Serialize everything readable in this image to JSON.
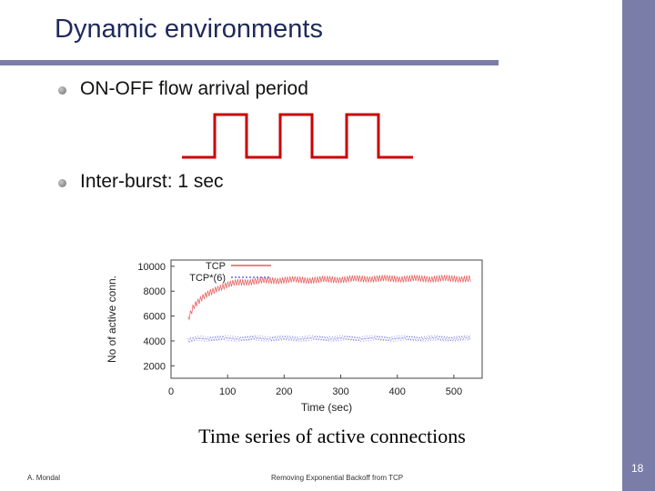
{
  "slide": {
    "title": "Dynamic environments",
    "bullets": [
      {
        "text": "ON-OFF flow arrival period"
      },
      {
        "text": "Inter-burst: 1 sec"
      }
    ],
    "caption": "Time series of active connections",
    "footer_left": "A. Mondal",
    "footer_center": "Removing Exponential Backoff from TCP",
    "page_number": "18"
  },
  "colors": {
    "accent": "#7b7da9",
    "title": "#1f2a5c",
    "wave": "#cc0000",
    "tcp_series": "#e23b3b",
    "tcp6_series": "#4a4ad0"
  },
  "chart_data": {
    "type": "line",
    "xlabel": "Time (sec)",
    "ylabel": "No of active conn.",
    "xlim": [
      0,
      550
    ],
    "ylim": [
      1000,
      10500
    ],
    "x_ticks": [
      0,
      100,
      200,
      300,
      400,
      500
    ],
    "y_ticks": [
      2000,
      4000,
      6000,
      8000,
      10000
    ],
    "legend_position": "top-left",
    "series": [
      {
        "name": "TCP",
        "color": "#e23b3b",
        "x": [
          30,
          40,
          50,
          60,
          70,
          80,
          100,
          120,
          150,
          200,
          250,
          300,
          350,
          400,
          450,
          500,
          530
        ],
        "y": [
          5800,
          6800,
          7200,
          7600,
          7900,
          8200,
          8500,
          8700,
          8800,
          8900,
          8900,
          8950,
          9000,
          9000,
          9000,
          9000,
          9000
        ],
        "band": 600
      },
      {
        "name": "TCP*(6)",
        "color": "#4a4ad0",
        "x": [
          30,
          40,
          50,
          100,
          150,
          200,
          250,
          300,
          350,
          400,
          450,
          500,
          530
        ],
        "y": [
          4000,
          4100,
          4200,
          4200,
          4200,
          4200,
          4200,
          4200,
          4200,
          4200,
          4200,
          4200,
          4200
        ],
        "band": 500
      }
    ]
  }
}
